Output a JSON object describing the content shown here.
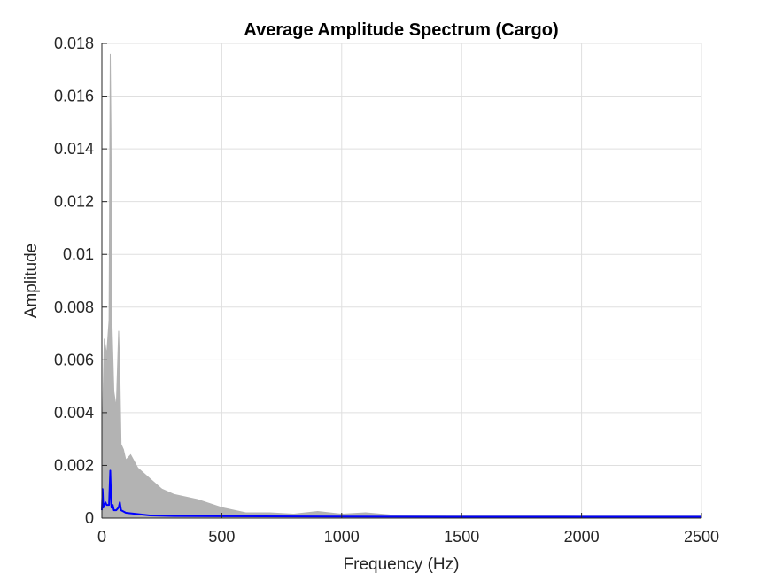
{
  "chart_data": {
    "type": "line",
    "title": "Average Amplitude Spectrum (Cargo)",
    "xlabel": "Frequency (Hz)",
    "ylabel": "Amplitude",
    "xlim": [
      0,
      2500
    ],
    "ylim": [
      0,
      0.018
    ],
    "xticks": [
      0,
      500,
      1000,
      1500,
      2000,
      2500
    ],
    "xtick_labels": [
      "0",
      "500",
      "1000",
      "1500",
      "2000",
      "2500"
    ],
    "yticks": [
      0,
      0.002,
      0.004,
      0.006,
      0.008,
      0.01,
      0.012,
      0.014,
      0.016,
      0.018
    ],
    "ytick_labels": [
      "0",
      "0.002",
      "0.004",
      "0.006",
      "0.008",
      "0.01",
      "0.012",
      "0.014",
      "0.016",
      "0.018"
    ],
    "grid": true,
    "colors": {
      "individual": "#b3b3b3",
      "average": "#0000ff"
    },
    "series": [
      {
        "style": "individual spectra (gray band)",
        "x": [
          0,
          10,
          20,
          30,
          35,
          38,
          42,
          50,
          60,
          70,
          75,
          80,
          90,
          100,
          120,
          150,
          200,
          250,
          300,
          400,
          500,
          600,
          700,
          800,
          900,
          1000,
          1100,
          1200,
          1500,
          2000,
          2500
        ],
        "y": [
          0.0025,
          0.0068,
          0.0062,
          0.0075,
          0.0176,
          0.0148,
          0.0074,
          0.0048,
          0.0042,
          0.0071,
          0.0055,
          0.0028,
          0.0026,
          0.0022,
          0.0024,
          0.0019,
          0.0015,
          0.0011,
          0.0009,
          0.0007,
          0.0004,
          0.0002,
          0.0002,
          0.00015,
          0.00025,
          0.00015,
          0.0002,
          0.00012,
          0.0001,
          8e-05,
          8e-05
        ]
      },
      {
        "style": "average spectrum (blue line)",
        "x": [
          0,
          3,
          6,
          10,
          15,
          20,
          30,
          35,
          38,
          40,
          45,
          50,
          60,
          70,
          75,
          80,
          90,
          100,
          150,
          200,
          300,
          500,
          1000,
          1500,
          2000,
          2500
        ],
        "y": [
          0.0003,
          0.0011,
          0.0004,
          0.0005,
          0.0006,
          0.0005,
          0.0005,
          0.0018,
          0.0009,
          0.0004,
          0.0005,
          0.0003,
          0.0003,
          0.0004,
          0.0006,
          0.0003,
          0.00025,
          0.0002,
          0.00015,
          0.0001,
          8e-05,
          7e-05,
          6e-05,
          5e-05,
          5e-05,
          5e-05
        ]
      }
    ]
  }
}
